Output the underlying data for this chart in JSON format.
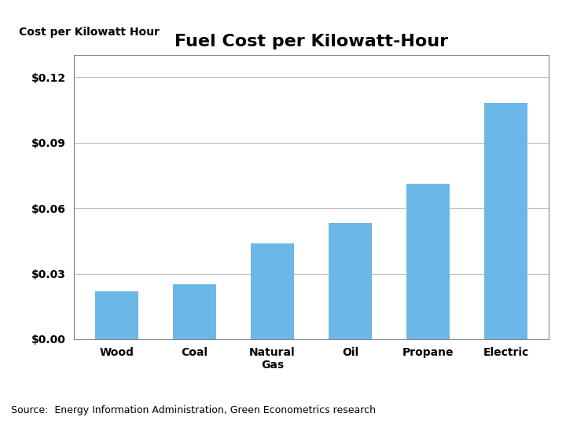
{
  "title": "Fuel Cost per Kilowatt-Hour",
  "ylabel": "Cost per Kilowatt Hour",
  "categories": [
    "Wood",
    "Coal",
    "Natural\nGas",
    "Oil",
    "Propane",
    "Electric"
  ],
  "values": [
    0.022,
    0.025,
    0.044,
    0.053,
    0.071,
    0.108
  ],
  "bar_color": "#6BB8E8",
  "ylim": [
    0,
    0.13
  ],
  "yticks": [
    0.0,
    0.03,
    0.06,
    0.09,
    0.12
  ],
  "source_text": "Source:  Energy Information Administration, Green Econometrics research",
  "background_color": "#ffffff",
  "title_fontsize": 16,
  "ylabel_fontsize": 10,
  "tick_fontsize": 10,
  "source_fontsize": 9
}
